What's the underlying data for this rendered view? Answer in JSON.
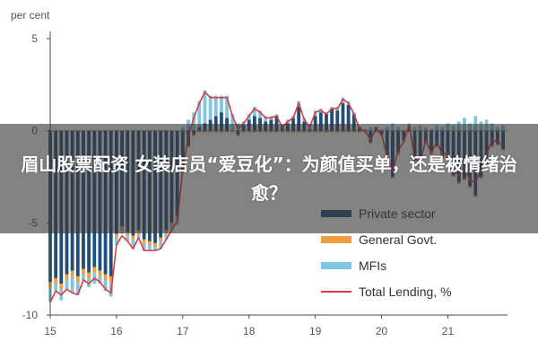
{
  "chart_data": {
    "type": "bar+line",
    "title": "",
    "unit_label": "per cent",
    "xlabel": "",
    "ylabel": "",
    "ylim": [
      -10,
      5
    ],
    "y_ticks": [
      5,
      0,
      -5,
      -10
    ],
    "x_ticks": [
      {
        "label": "15",
        "date": 2015.0
      },
      {
        "label": "16",
        "date": 2016.0
      },
      {
        "label": "17",
        "date": 2017.0
      },
      {
        "label": "18",
        "date": 2018.0
      },
      {
        "label": "19",
        "date": 2019.0
      },
      {
        "label": "20",
        "date": 2020.0
      },
      {
        "label": "21",
        "date": 2021.0
      }
    ],
    "xlim": [
      2015.0,
      2021.9
    ],
    "grid": false,
    "legend_position": "bottom-right",
    "legend": [
      {
        "label": "Private sector",
        "type": "bar",
        "color": "#1f4e79"
      },
      {
        "label": "General Govt.",
        "type": "bar",
        "color": "#f39c3b"
      },
      {
        "label": "MFIs",
        "type": "bar",
        "color": "#7fc6e0"
      },
      {
        "label": "Total Lending, %",
        "type": "line",
        "color": "#e03a3a"
      }
    ],
    "dates": [
      2015.0,
      2015.0833,
      2015.1667,
      2015.25,
      2015.3333,
      2015.4167,
      2015.5,
      2015.5833,
      2015.6667,
      2015.75,
      2015.8333,
      2015.9167,
      2016.0,
      2016.0833,
      2016.1667,
      2016.25,
      2016.3333,
      2016.4167,
      2016.5,
      2016.5833,
      2016.6667,
      2016.75,
      2016.8333,
      2016.9167,
      2017.0,
      2017.0833,
      2017.1667,
      2017.25,
      2017.3333,
      2017.4167,
      2017.5,
      2017.5833,
      2017.6667,
      2017.75,
      2017.8333,
      2017.9167,
      2018.0,
      2018.0833,
      2018.1667,
      2018.25,
      2018.3333,
      2018.4167,
      2018.5,
      2018.5833,
      2018.6667,
      2018.75,
      2018.8333,
      2018.9167,
      2019.0,
      2019.0833,
      2019.1667,
      2019.25,
      2019.3333,
      2019.4167,
      2019.5,
      2019.5833,
      2019.6667,
      2019.75,
      2019.8333,
      2019.9167,
      2020.0,
      2020.0833,
      2020.1667,
      2020.25,
      2020.3333,
      2020.4167,
      2020.5,
      2020.5833,
      2020.6667,
      2020.75,
      2020.8333,
      2020.9167,
      2021.0,
      2021.0833,
      2021.1667,
      2021.25,
      2021.3333,
      2021.4167,
      2021.5,
      2021.5833,
      2021.6667,
      2021.75,
      2021.8333
    ],
    "series": [
      {
        "name": "Private sector",
        "values": [
          -8.2,
          -8.0,
          -8.3,
          -7.8,
          -7.6,
          -7.9,
          -7.5,
          -7.7,
          -7.4,
          -7.6,
          -7.8,
          -7.9,
          -5.6,
          -5.2,
          -5.5,
          -5.7,
          -5.4,
          -5.9,
          -6.0,
          -6.1,
          -5.8,
          -5.4,
          -5.0,
          -4.6,
          -2.2,
          -0.8,
          -0.2,
          0.2,
          0.4,
          0.6,
          0.8,
          1.0,
          0.7,
          0.0,
          -0.2,
          0.3,
          0.6,
          0.8,
          0.7,
          0.5,
          0.6,
          0.8,
          0.2,
          0.4,
          0.7,
          1.3,
          0.5,
          0.1,
          0.8,
          1.0,
          0.9,
          1.2,
          1.1,
          1.5,
          1.4,
          0.9,
          0.2,
          0.0,
          -0.6,
          0.2,
          -0.2,
          -1.5,
          -2.5,
          -1.2,
          -0.5,
          0.1,
          -1.6,
          -1.9,
          -0.6,
          -1.2,
          -0.8,
          -1.4,
          -1.5,
          -2.4,
          -2.8,
          -2.6,
          -3.0,
          -3.5,
          -2.5,
          -1.8,
          -0.8,
          -0.7,
          -1.0
        ]
      },
      {
        "name": "General Govt.",
        "values": [
          -0.3,
          -0.3,
          -0.3,
          -0.3,
          -0.3,
          -0.3,
          -0.3,
          -0.3,
          -0.3,
          -0.3,
          -0.3,
          -0.3,
          -0.2,
          -0.2,
          -0.2,
          -0.2,
          -0.2,
          -0.2,
          -0.2,
          -0.2,
          -0.2,
          -0.2,
          -0.2,
          -0.2,
          -0.1,
          -0.1,
          -0.1,
          -0.1,
          -0.1,
          -0.1,
          -0.1,
          -0.1,
          -0.1,
          -0.1,
          -0.1,
          -0.1,
          -0.1,
          -0.1,
          -0.1,
          -0.1,
          -0.1,
          -0.1,
          -0.1,
          -0.1,
          -0.1,
          -0.1,
          -0.1,
          -0.1,
          -0.1,
          -0.1,
          -0.1,
          -0.1,
          -0.1,
          -0.1,
          -0.1,
          -0.1,
          -0.1,
          -0.1,
          -0.1,
          -0.1,
          -0.1,
          -0.1,
          -0.1,
          -0.1,
          -0.1,
          -0.1,
          -0.1,
          -0.1,
          -0.1,
          -0.1,
          -0.1,
          -0.1,
          -0.1,
          -0.1,
          -0.1,
          -0.1,
          -0.1,
          -0.1,
          -0.1,
          -0.1,
          -0.1,
          -0.1,
          -0.1
        ]
      },
      {
        "name": "MFIs",
        "values": [
          -0.8,
          -0.4,
          -0.6,
          -0.5,
          -0.9,
          -0.7,
          -0.3,
          -0.5,
          -0.6,
          -0.4,
          -0.6,
          -0.8,
          -0.4,
          -0.2,
          -0.3,
          -0.5,
          -0.2,
          -0.4,
          -0.3,
          -0.2,
          -0.4,
          -0.3,
          -0.2,
          -0.3,
          0.2,
          0.6,
          1.0,
          1.4,
          1.8,
          1.3,
          1.1,
          0.9,
          1.2,
          0.9,
          0.4,
          0.2,
          0.3,
          0.5,
          0.4,
          0.3,
          0.2,
          0.1,
          0.1,
          0.2,
          0.1,
          0.3,
          0.2,
          0.2,
          0.3,
          0.2,
          0.1,
          0.1,
          0.2,
          0.3,
          0.2,
          0.1,
          0.0,
          0.1,
          0.2,
          0.0,
          0.1,
          0.2,
          0.4,
          0.2,
          0.0,
          0.3,
          0.2,
          0.3,
          0.2,
          0.1,
          0.3,
          0.2,
          0.4,
          0.3,
          0.5,
          0.7,
          0.4,
          0.8,
          0.5,
          0.6,
          0.4,
          0.2,
          0.3
        ]
      },
      {
        "name": "Total Lending, %",
        "values": [
          -9.3,
          -8.7,
          -8.9,
          -8.6,
          -8.8,
          -8.9,
          -8.1,
          -8.3,
          -8.0,
          -8.2,
          -8.6,
          -8.8,
          -6.2,
          -5.7,
          -6.0,
          -6.4,
          -5.8,
          -6.5,
          -6.5,
          -6.5,
          -6.4,
          -5.9,
          -5.4,
          -4.9,
          -2.1,
          -0.3,
          0.7,
          1.5,
          2.1,
          1.8,
          1.8,
          1.8,
          1.8,
          0.8,
          0.1,
          0.4,
          0.8,
          1.2,
          1.0,
          0.7,
          0.7,
          0.8,
          0.2,
          0.5,
          0.7,
          1.5,
          0.6,
          0.2,
          1.0,
          1.1,
          0.9,
          1.2,
          1.2,
          1.7,
          1.5,
          0.9,
          0.1,
          0.0,
          -0.5,
          0.1,
          -0.2,
          -1.4,
          -2.2,
          -1.1,
          -0.6,
          0.3,
          -1.5,
          -1.7,
          -0.5,
          -1.2,
          -0.6,
          -1.3,
          -1.2,
          -2.2,
          -2.4,
          -2.0,
          -2.7,
          -2.8,
          -2.1,
          -1.3,
          -0.5,
          -0.6,
          -0.8
        ]
      }
    ]
  },
  "overlay": {
    "headline": "眉山股票配资 女装店员“爱豆化”：为颜值买单，还是被情绪治愈？"
  },
  "colors": {
    "axis": "#4a4a4a",
    "tick_text": "#555555",
    "overlay_bg": "#373737"
  }
}
